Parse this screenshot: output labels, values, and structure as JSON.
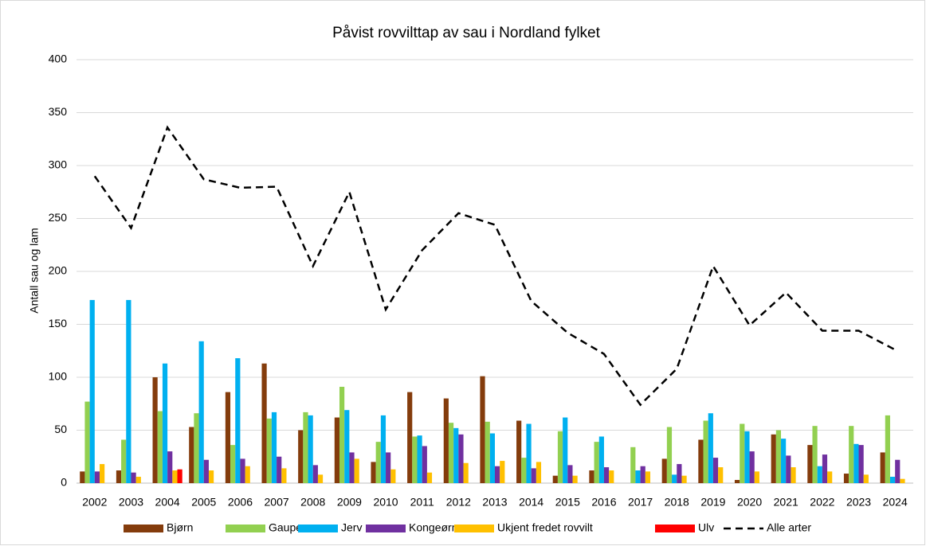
{
  "chart_data": {
    "type": "bar",
    "title": "Påvist rovvilttap av sau i Nordland fylket",
    "y_label": "Antall sau og lam",
    "categories": [
      "2002",
      "2003",
      "2004",
      "2005",
      "2006",
      "2007",
      "2008",
      "2009",
      "2010",
      "2011",
      "2012",
      "2013",
      "2014",
      "2015",
      "2016",
      "2017",
      "2018",
      "2019",
      "2020",
      "2021",
      "2022",
      "2023",
      "2024"
    ],
    "series": [
      {
        "name": "Bjørn",
        "color": "#843c0c",
        "values": [
          11,
          12,
          100,
          53,
          86,
          113,
          50,
          62,
          20,
          86,
          80,
          101,
          59,
          7,
          12,
          0,
          23,
          41,
          3,
          46,
          36,
          9,
          29
        ]
      },
      {
        "name": "Gaupe",
        "color": "#92d050",
        "values": [
          77,
          41,
          68,
          66,
          36,
          61,
          67,
          91,
          39,
          44,
          57,
          58,
          24,
          49,
          39,
          34,
          53,
          59,
          56,
          50,
          54,
          54,
          64
        ]
      },
      {
        "name": "Jerv",
        "color": "#00b0f0",
        "values": [
          173,
          173,
          113,
          134,
          118,
          67,
          64,
          69,
          64,
          45,
          52,
          47,
          56,
          62,
          44,
          12,
          8,
          66,
          49,
          42,
          16,
          37,
          6
        ]
      },
      {
        "name": "Kongeørn",
        "color": "#7030a0",
        "values": [
          11,
          10,
          30,
          22,
          23,
          25,
          17,
          29,
          29,
          35,
          46,
          16,
          14,
          17,
          15,
          16,
          18,
          24,
          30,
          26,
          27,
          36,
          22
        ]
      },
      {
        "name": "Ukjent fredet rovvilt",
        "color": "#ffc000",
        "values": [
          18,
          6,
          12,
          12,
          16,
          14,
          8,
          23,
          13,
          10,
          19,
          21,
          20,
          7,
          12,
          11,
          7,
          15,
          11,
          15,
          11,
          8,
          4
        ]
      },
      {
        "name": "Ulv",
        "color": "#ff0000",
        "values": [
          0,
          0,
          13,
          0,
          0,
          0,
          0,
          0,
          0,
          0,
          0,
          0,
          0,
          0,
          0,
          0,
          0,
          0,
          0,
          0,
          0,
          0,
          0
        ]
      },
      {
        "name": "Alle arter",
        "color": "#000000",
        "type": "line",
        "dashed": true,
        "values": [
          290,
          241,
          336,
          287,
          279,
          280,
          205,
          275,
          164,
          220,
          255,
          244,
          172,
          142,
          122,
          74,
          108,
          205,
          149,
          180,
          144,
          144,
          126
        ]
      }
    ],
    "ylim": [
      0,
      400
    ],
    "yticks": [
      0,
      50,
      100,
      150,
      200,
      250,
      300,
      350,
      400
    ],
    "grid": true,
    "legend": "bottom"
  }
}
